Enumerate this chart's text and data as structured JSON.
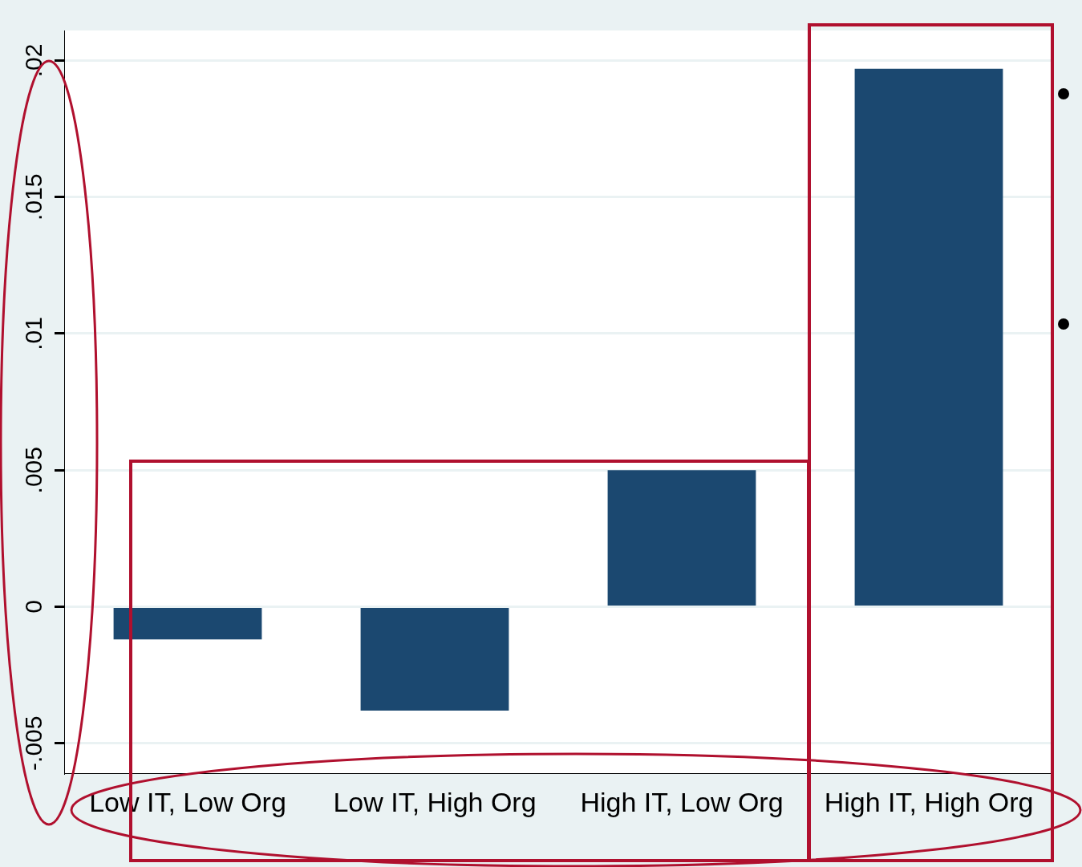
{
  "chart_data": {
    "type": "bar",
    "categories": [
      "Low IT, Low Org",
      "Low IT, High Org",
      "High IT, Low Org",
      "High IT, High Org"
    ],
    "values": [
      -0.0012,
      -0.0038,
      0.005,
      0.0197
    ],
    "color": "#1b4870",
    "ylim": [
      -0.0061,
      0.0211
    ],
    "yticks": [
      {
        "value": -0.005,
        "label": "-.005"
      },
      {
        "value": 0,
        "label": "0"
      },
      {
        "value": 0.005,
        "label": ".005"
      },
      {
        "value": 0.01,
        "label": ".01"
      },
      {
        "value": 0.015,
        "label": ".015"
      },
      {
        "value": 0.02,
        "label": ".02"
      }
    ],
    "grid": "y",
    "legend": false
  }
}
